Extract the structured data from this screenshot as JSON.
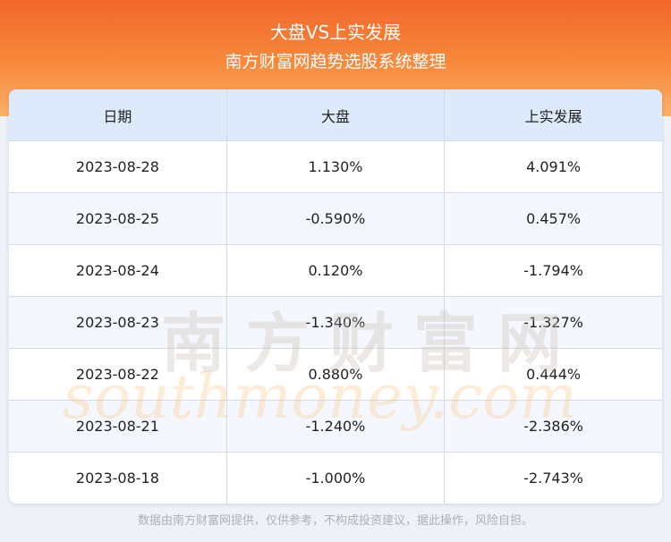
{
  "header": {
    "title": "大盘VS上实发展",
    "subtitle": "南方财富网趋势选股系统整理"
  },
  "table": {
    "columns": [
      "日期",
      "大盘",
      "上实发展"
    ],
    "rows": [
      [
        "2023-08-28",
        "1.130%",
        "4.091%"
      ],
      [
        "2023-08-25",
        "-0.590%",
        "0.457%"
      ],
      [
        "2023-08-24",
        "0.120%",
        "-1.794%"
      ],
      [
        "2023-08-23",
        "-1.340%",
        "-1.327%"
      ],
      [
        "2023-08-22",
        "0.880%",
        "0.444%"
      ],
      [
        "2023-08-21",
        "-1.240%",
        "-2.386%"
      ],
      [
        "2023-08-18",
        "-1.000%",
        "-2.743%"
      ]
    ]
  },
  "watermark": {
    "cn": "南方财富网",
    "en": "southmoney.com"
  },
  "footer": {
    "note": "数据由南方财富网提供，仅供参考，不构成投资建议，据此操作，风险自担。"
  }
}
